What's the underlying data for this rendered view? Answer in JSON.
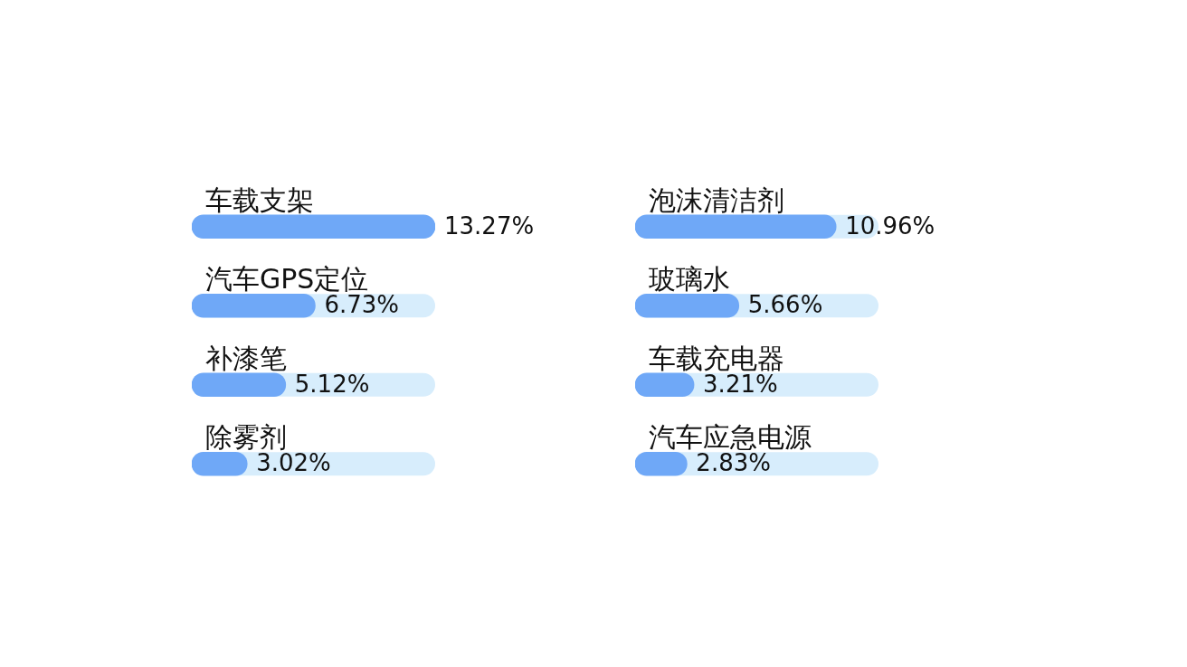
{
  "chart_data": [
    {
      "type": "bar",
      "orientation": "horizontal",
      "categories": [
        "车载支架",
        "汽车GPS定位",
        "补漆笔",
        "除雾剂"
      ],
      "values": [
        13.27,
        6.73,
        5.12,
        3.02
      ],
      "value_labels": [
        "13.27%",
        "6.73%",
        "5.12%",
        "3.02%"
      ],
      "color": "#6fa8f7",
      "tick_labels": "y"
    },
    {
      "type": "bar",
      "orientation": "horizontal",
      "categories": [
        "泡沫清洁剂",
        "玻璃水",
        "车载充电器",
        "汽车应急电源"
      ],
      "values": [
        10.96,
        5.66,
        3.21,
        2.83
      ],
      "value_labels": [
        "10.96%",
        "5.66%",
        "3.21%",
        "2.83%"
      ],
      "color": "#6fa8f7",
      "tick_labels": "y"
    }
  ]
}
